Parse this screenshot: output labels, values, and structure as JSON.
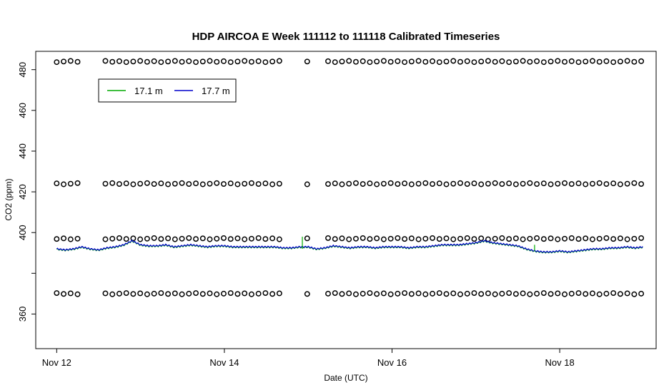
{
  "chart_data": {
    "type": "line",
    "title": "HDP AIRCOA E  Week 111112 to 111118  Calibrated Timeseries",
    "xlabel": "Date (UTC)",
    "ylabel": "CO2 (ppm)",
    "x_unit": "days (Nov 12 = 0)",
    "xlim": [
      -0.25,
      7.15
    ],
    "ylim": [
      343,
      489
    ],
    "x_ticks": [
      {
        "label": "Nov 12",
        "value": 0
      },
      {
        "label": "Nov 14",
        "value": 2
      },
      {
        "label": "Nov 16",
        "value": 4
      },
      {
        "label": "Nov 18",
        "value": 6
      }
    ],
    "y_ticks": [
      360,
      380,
      400,
      420,
      440,
      460,
      480
    ],
    "y_tick_labels_shown": [
      360,
      400,
      420,
      440,
      460,
      480
    ],
    "grid": false,
    "legend": {
      "position": "top-left",
      "entries": [
        {
          "label": "17.1 m",
          "color": "#00aa00"
        },
        {
          "label": "17.7 m",
          "color": "#0000cc"
        }
      ]
    },
    "series": [
      {
        "name": "17.1 m",
        "color": "#00aa00",
        "note": "nearly coincident with 17.7 m; short spikes",
        "spikes": [
          {
            "x": 2.93,
            "y_low": 392,
            "y_high": 398
          },
          {
            "x": 5.7,
            "y_low": 391,
            "y_high": 394
          }
        ]
      },
      {
        "name": "17.7 m",
        "color": "#0000cc",
        "x": [
          0.0,
          0.1,
          0.2,
          0.3,
          0.4,
          0.5,
          0.6,
          0.7,
          0.8,
          0.9,
          1.0,
          1.1,
          1.2,
          1.3,
          1.4,
          1.5,
          1.6,
          1.7,
          1.8,
          1.9,
          2.0,
          2.1,
          2.2,
          2.3,
          2.4,
          2.5,
          2.6,
          2.7,
          2.8,
          2.9,
          3.0,
          3.1,
          3.2,
          3.3,
          3.4,
          3.5,
          3.6,
          3.7,
          3.8,
          3.9,
          4.0,
          4.1,
          4.2,
          4.3,
          4.4,
          4.5,
          4.6,
          4.7,
          4.8,
          4.9,
          5.0,
          5.1,
          5.2,
          5.3,
          5.4,
          5.5,
          5.6,
          5.7,
          5.8,
          5.9,
          6.0,
          6.1,
          6.2,
          6.3,
          6.4,
          6.5,
          6.6,
          6.7,
          6.8,
          6.9,
          7.0
        ],
        "y": [
          392,
          391.5,
          392,
          393,
          392,
          391.5,
          392.5,
          393,
          394,
          396,
          394,
          393.5,
          393.5,
          394,
          393,
          393.5,
          394,
          393.5,
          393,
          393.5,
          393.5,
          393,
          393,
          393,
          393,
          393,
          393,
          392.5,
          392.5,
          393,
          393,
          392,
          392.5,
          393.5,
          393,
          392.5,
          393,
          393,
          392.5,
          393,
          393,
          393,
          392.5,
          393,
          393,
          393.5,
          394,
          394,
          394,
          394.5,
          395,
          396,
          395,
          394.5,
          394,
          393.5,
          392,
          391,
          390.5,
          390.5,
          391,
          390.5,
          391,
          391.5,
          392,
          392,
          392.5,
          392.5,
          393,
          392.5,
          393
        ]
      },
      {
        "name": "calibration-points",
        "marker": "open-circle",
        "color": "#000000",
        "levels": [
          484,
          424,
          397,
          370
        ],
        "sample_spacing_days": 0.083,
        "gaps_days": [
          [
            0.26,
            0.55
          ],
          [
            2.72,
            2.93
          ],
          [
            3.05,
            3.18
          ]
        ]
      }
    ]
  }
}
